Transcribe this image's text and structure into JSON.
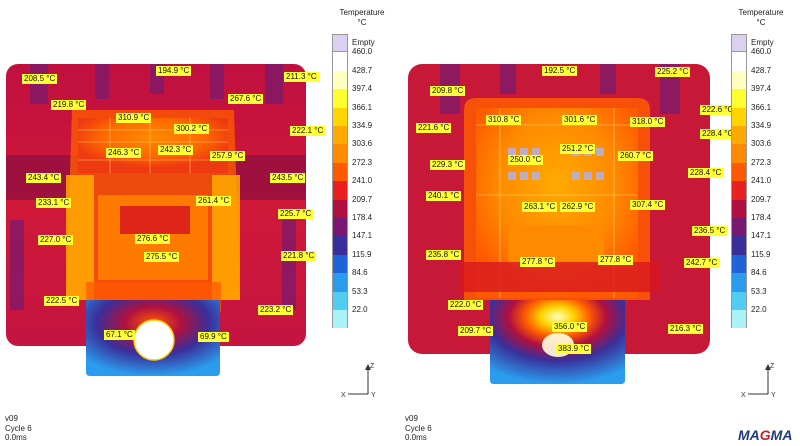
{
  "legend": {
    "title": "Temperature",
    "unit": "°C",
    "empty_label": "Empty",
    "values": [
      "460.0",
      "428.7",
      "397.4",
      "366.1",
      "334.9",
      "303.6",
      "272.3",
      "241.0",
      "209.7",
      "178.4",
      "147.1",
      "115.9",
      "84.6",
      "53.3",
      "22.0"
    ],
    "colors": [
      "#ffffff",
      "#ffffc0",
      "#ffff30",
      "#ffd400",
      "#ffaa00",
      "#ff8a00",
      "#ff5a00",
      "#e82020",
      "#b01040",
      "#781870",
      "#3a2f9a",
      "#1e64d8",
      "#2a9cee",
      "#52cdf2",
      "#a8f2f8"
    ],
    "empty_color": "#dcd0f0"
  },
  "left_panel": {
    "labels": [
      "208.5 °C",
      "194.9 °C",
      "211.3 °C",
      "219.8 °C",
      "267.6 °C",
      "310.9 °C",
      "300.2 °C",
      "222.1 °C",
      "246.3 °C",
      "242.3 °C",
      "257.9 °C",
      "243.4 °C",
      "243.5 °C",
      "233.1 °C",
      "261.4 °C",
      "225.7 °C",
      "227.0 °C",
      "276.6 °C",
      "275.5 °C",
      "221.8 °C",
      "222.5 °C",
      "223.2 °C",
      "67.1 °C",
      "69.9 °C"
    ],
    "info": {
      "version": "v09",
      "cycle": "Cycle 6",
      "time": "0.0ms"
    }
  },
  "right_panel": {
    "labels": [
      "192.5 °C",
      "225.2 °C",
      "209.8 °C",
      "222.6 °C",
      "310.8 °C",
      "301.6 °C",
      "318.0 °C",
      "221.6 °C",
      "228.4 °C",
      "250.0 °C",
      "251.2 °C",
      "260.7 °C",
      "229.3 °C",
      "228.4 °C",
      "240.1 °C",
      "263.1 °C",
      "262.9 °C",
      "307.4 °C",
      "236.5 °C",
      "235.8 °C",
      "277.8 °C",
      "277.8 °C",
      "242.7 °C",
      "222.0 °C",
      "209.7 °C",
      "356.0 °C",
      "216.3 °C",
      "383.9 °C"
    ],
    "info": {
      "version": "v09",
      "cycle": "Cycle 6",
      "time": "0.0ms"
    }
  },
  "axes": {
    "z": "Z",
    "x": "X",
    "y": "Y"
  },
  "logo": {
    "prefix": "MA",
    "accent": "G",
    "suffix": "MA"
  }
}
